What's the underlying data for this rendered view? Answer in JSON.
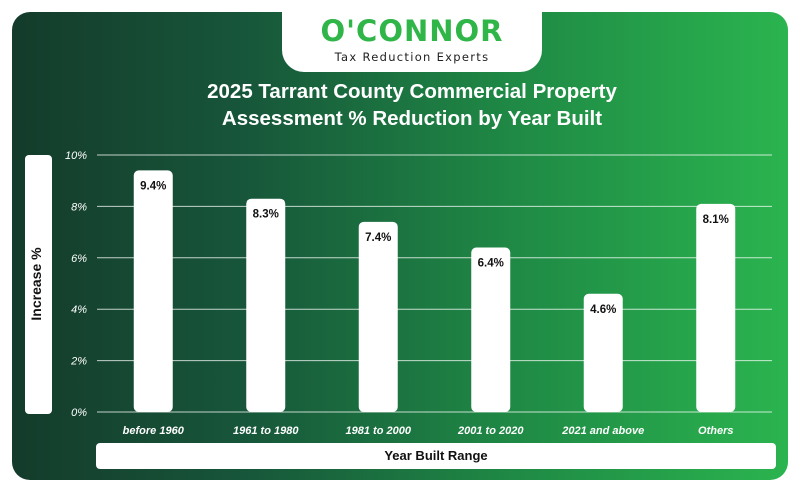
{
  "brand": {
    "logo_text": "O'CONNOR",
    "tagline": "Tax Reduction Experts"
  },
  "colors": {
    "gradient_start": "#143b2b",
    "gradient_end": "#2bb44f",
    "bar_fill": "#ffffff",
    "logo_green": "#2fb548"
  },
  "chart_data": {
    "type": "bar",
    "title_lines": [
      "2025 Tarrant County Commercial Property",
      "Assessment % Reduction by Year Built"
    ],
    "xlabel": "Year Built Range",
    "ylabel": "Increase %",
    "categories": [
      "before 1960",
      "1961 to 1980",
      "1981 to 2000",
      "2001 to 2020",
      "2021 and above",
      "Others"
    ],
    "values": [
      9.4,
      8.3,
      7.4,
      6.4,
      4.6,
      8.1
    ],
    "value_labels": [
      "9.4%",
      "8.3%",
      "7.4%",
      "6.4%",
      "4.6%",
      "8.1%"
    ],
    "ylim": [
      0,
      10
    ],
    "y_ticks": [
      0,
      2,
      4,
      6,
      8,
      10
    ],
    "y_tick_labels": [
      "0%",
      "2%",
      "4%",
      "6%",
      "8%",
      "10%"
    ],
    "grid": true,
    "legend": "none"
  }
}
